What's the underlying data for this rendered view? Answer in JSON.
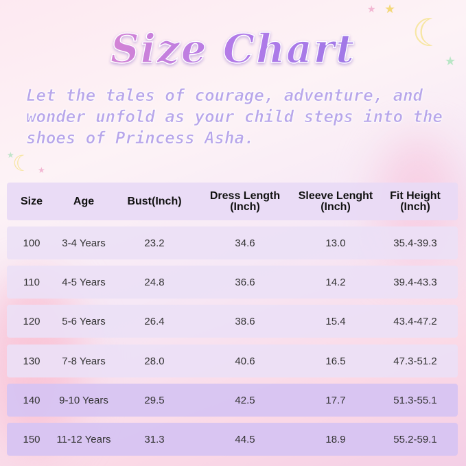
{
  "title": "Size Chart",
  "subtitle": "Let the tales of courage, adventure, and wonder unfold as your child steps into the shoes of Princess Asha.",
  "table": {
    "headers": [
      "Size",
      "Age",
      "Bust(Inch)",
      "Dress Length\n(Inch)",
      "Sleeve Lenght\n(Inch)",
      "Fit Height\n(Inch)"
    ],
    "rows": [
      [
        "100",
        "3-4 Years",
        "23.2",
        "34.6",
        "13.0",
        "35.4-39.3"
      ],
      [
        "110",
        "4-5 Years",
        "24.8",
        "36.6",
        "14.2",
        "39.4-43.3"
      ],
      [
        "120",
        "5-6 Years",
        "26.4",
        "38.6",
        "15.4",
        "43.4-47.2"
      ],
      [
        "130",
        "7-8 Years",
        "28.0",
        "40.6",
        "16.5",
        "47.3-51.2"
      ],
      [
        "140",
        "9-10 Years",
        "29.5",
        "42.5",
        "17.7",
        "51.3-55.1"
      ],
      [
        "150",
        "11-12 Years",
        "31.3",
        "44.5",
        "18.9",
        "55.2-59.1"
      ]
    ]
  },
  "colors": {
    "row_light": "#ebe0f6",
    "row_dark": "#d7c4f2",
    "title_pink": "#f28cc4",
    "title_purple": "#8f76e6"
  }
}
